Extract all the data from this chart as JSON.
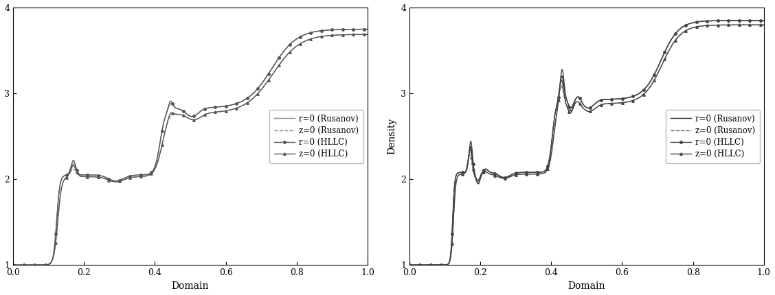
{
  "xlim": [
    0,
    1
  ],
  "ylim": [
    1,
    4
  ],
  "xlabel": "Domain",
  "ylabel_left": "",
  "ylabel_right": "Density",
  "yticks": [
    1,
    2,
    3,
    4
  ],
  "xticks": [
    0,
    0.2,
    0.4,
    0.6,
    0.8,
    1.0
  ],
  "background_color": "#ffffff",
  "figsize": [
    11.28,
    4.3
  ],
  "dpi": 100,
  "left_colors": {
    "r0_rusanov": "#888888",
    "z0_rusanov": "#888888",
    "r0_hllc": "#555555",
    "z0_hllc": "#555555"
  },
  "right_colors": {
    "r0_rusanov": "#222222",
    "z0_rusanov": "#666666",
    "r0_hllc": "#444444",
    "z0_hllc": "#444444"
  }
}
